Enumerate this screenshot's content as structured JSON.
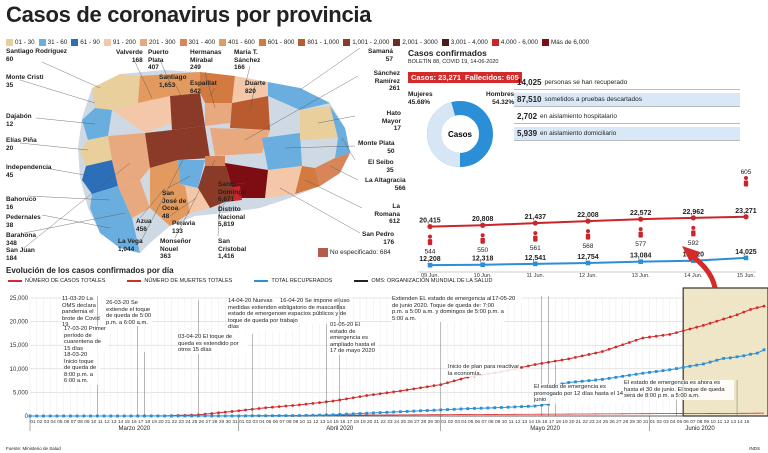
{
  "title": "Casos de coronavirus por provincia",
  "legend": [
    {
      "label": "01 - 30",
      "color": "#e8cf9c"
    },
    {
      "label": "31 - 60",
      "color": "#6aaee0"
    },
    {
      "label": "61 - 90",
      "color": "#2c6fb8"
    },
    {
      "label": "91 - 200",
      "color": "#f3c7a8"
    },
    {
      "label": "201 - 300",
      "color": "#e9a97f"
    },
    {
      "label": "301 - 400",
      "color": "#d88659"
    },
    {
      "label": "401 - 600",
      "color": "#e39a5f"
    },
    {
      "label": "601 - 800",
      "color": "#d27a40"
    },
    {
      "label": "801 - 1,000",
      "color": "#b95a2f"
    },
    {
      "label": "1,001 - 2,000",
      "color": "#8a3a27"
    },
    {
      "label": "2,001 - 3000",
      "color": "#6b2d22"
    },
    {
      "label": "3,001 - 4,000",
      "color": "#4d1b16"
    },
    {
      "label": "4,000 - 6,000",
      "color": "#c9252b"
    },
    {
      "label": "Más de 6,000",
      "color": "#7d0d12"
    }
  ],
  "provinces": [
    {
      "name": "Santiago Rodríguez",
      "value": "60"
    },
    {
      "name": "Monte Cristi",
      "value": "35"
    },
    {
      "name": "Dajabón",
      "value": "12"
    },
    {
      "name": "Elías Piña",
      "value": "20"
    },
    {
      "name": "Independencia",
      "value": "45"
    },
    {
      "name": "Bahoruco",
      "value": "16"
    },
    {
      "name": "Pedernales",
      "value": "38"
    },
    {
      "name": "Barahona",
      "value": "348"
    },
    {
      "name": "San Juan",
      "value": "184"
    },
    {
      "name": "Valverde",
      "value": "168"
    },
    {
      "name": "Puerto Plata",
      "value": "407"
    },
    {
      "name": "Santiago",
      "value": "1,653"
    },
    {
      "name": "Hermanas Mirabal",
      "value": "249"
    },
    {
      "name": "Espaillat",
      "value": "642"
    },
    {
      "name": "María T. Sánchez",
      "value": "166"
    },
    {
      "name": "Duarte",
      "value": "820"
    },
    {
      "name": "Samaná",
      "value": "57"
    },
    {
      "name": "Sánchez Ramírez",
      "value": "261"
    },
    {
      "name": "Hato Mayor",
      "value": "17"
    },
    {
      "name": "Monte Plata",
      "value": "50"
    },
    {
      "name": "El Seibo",
      "value": "35"
    },
    {
      "name": "La Altagracia",
      "value": "566"
    },
    {
      "name": "La Romana",
      "value": "612"
    },
    {
      "name": "San Pedro",
      "value": "176"
    },
    {
      "name": "Santo Domingo",
      "value": "6,671"
    },
    {
      "name": "Distrito Nacional",
      "value": "5,819"
    },
    {
      "name": "San Cristobal",
      "value": "1,416"
    },
    {
      "name": "Monseñor Nouel",
      "value": "363"
    },
    {
      "name": "La Vega",
      "value": "1,044"
    },
    {
      "name": "Azua",
      "value": "456"
    },
    {
      "name": "San José de Ocoa",
      "value": "48"
    },
    {
      "name": "Peravia",
      "value": "133"
    }
  ],
  "no_especificado": "No especificado: 684",
  "cases": {
    "header": "Casos confirmados",
    "boletin": "BOLETÍN 88, COVID 19, 14-06-2020",
    "casos_label": "Casos: 23,271",
    "fallecidos_label": "Fallecidos: 605",
    "mujeres_label": "Mujeres",
    "mujeres_pct": "45.68%",
    "hombres_label": "Hombres",
    "hombres_pct": "54.32%",
    "mujeres_value": 45.68,
    "donut_center": "Casos",
    "stats": [
      {
        "value": "14,025",
        "text": "personas se han recuperado"
      },
      {
        "value": "87,510",
        "text": "sometidos a pruebas descartados"
      },
      {
        "value": "2,702",
        "text": "en aislamiento hospitalario"
      },
      {
        "value": "5,939",
        "text": "en aislamiento domiciliario"
      }
    ],
    "mini": {
      "dates": [
        "09 Jun.",
        "10 Jun.",
        "11 Jun.",
        "12 Jun.",
        "13 Jun.",
        "14 Jun.",
        "15 Jun."
      ],
      "confirmed": [
        "20,415",
        "20,808",
        "21,437",
        "22,008",
        "22,572",
        "22,962",
        "23,271"
      ],
      "confirmed_values": [
        20415,
        20808,
        21437,
        22008,
        22572,
        22962,
        23271
      ],
      "deaths": [
        "544",
        "550",
        "561",
        "568",
        "577",
        "592",
        "605"
      ],
      "recovered": [
        "12,208",
        "12,318",
        "12,541",
        "12,754",
        "13,084",
        "13,320",
        "14,025"
      ],
      "recovered_values": [
        12208,
        12318,
        12541,
        12754,
        13084,
        13320,
        14025
      ]
    }
  },
  "evolution": {
    "title": "Evolución de los casos confirmados por día",
    "legend": [
      {
        "label": "NÚMERO DE CASOS TOTALES",
        "color": "#d32a2a"
      },
      {
        "label": "NÚMERO DE MUERTES TOTALES",
        "color": "#d32a2a"
      },
      {
        "label": "TOTAL RECUPERADOS",
        "color": "#2a8fd6"
      },
      {
        "label": "OMS: ORGANIZACIÓN MUNDIAL DE LA SALUD",
        "color": "#222"
      }
    ],
    "yticks": [
      "0",
      "5,000",
      "10,000",
      "15,000",
      "20,000",
      "25,000"
    ],
    "months": [
      "Marzo 2020",
      "Abril 2020",
      "Mayo 2020",
      "Junio 2020"
    ],
    "annotations": [
      "11-03-20 La OMS declara pandemia el brote de Covid 19",
      "17-03-20 Primer período de cuarentena de 15 días",
      "18-03-20 Inicio toque de queda de 8:00 p.m. a 6:00 a.m.",
      "26-03-20 Se extiende el toque de queda de 5:00 p.m. a 6:00 a.m.",
      "03-04-20 El toque de queda es extendido por otros 15 días",
      "14-04-20 Nuevas medidas extienden el estado de emergencia y toque de queda por 17 días",
      "16-04-20 Se impone el uso obligatorio de mascarillas en espacios públicos y de trabajo",
      "01-05-20 El estado de emergencia es ampliado hasta el 17 de mayo 2020",
      "Extienden EL estado de emergencia al 1ro. de junio 2020. Toque de queda de: 7:00 p.m. a 5:00 a.m. y domingos de 5:00 p.m. a 5:00 a.m.",
      "17-05-20",
      "Inicio de plan para reactivar la economía.",
      "El estado de emergencia es prorrogado por 12 días hasta el 14 de junio",
      "El estado de emergencia es ahora es hasta el 30 de junio. El toque de queda será de 8:00 p.m. a 5:00 a.m."
    ],
    "chart_data": {
      "type": "line",
      "x_start": "2020-03-01",
      "x_end": "2020-06-15",
      "ylim": [
        0,
        25000
      ],
      "series": [
        {
          "name": "NÚMERO DE CASOS TOTALES",
          "points": [
            [
              0,
              0
            ],
            [
              10,
              0
            ],
            [
              16,
              11
            ],
            [
              20,
              34
            ],
            [
              25,
              250
            ],
            [
              31,
              1109
            ],
            [
              35,
              1745
            ],
            [
              40,
              2349
            ],
            [
              45,
              3167
            ],
            [
              50,
              4335
            ],
            [
              55,
              5300
            ],
            [
              61,
              6652
            ],
            [
              65,
              8235
            ],
            [
              70,
              9376
            ],
            [
              75,
              10900
            ],
            [
              80,
              12110
            ],
            [
              85,
              13657
            ],
            [
              91,
              16531
            ],
            [
              95,
              17285
            ],
            [
              100,
              19195
            ],
            [
              105,
              21437
            ],
            [
              106,
              22008
            ],
            [
              107,
              22572
            ],
            [
              108,
              22962
            ],
            [
              109,
              23271
            ]
          ]
        },
        {
          "name": "NÚMERO DE MUERTES TOTALES",
          "points": [
            [
              0,
              0
            ],
            [
              31,
              51
            ],
            [
              61,
              282
            ],
            [
              91,
              485
            ],
            [
              106,
              568
            ],
            [
              109,
              605
            ]
          ]
        },
        {
          "name": "TOTAL RECUPERADOS",
          "points": [
            [
              0,
              0
            ],
            [
              25,
              3
            ],
            [
              31,
              15
            ],
            [
              40,
              100
            ],
            [
              45,
              253
            ],
            [
              50,
              586
            ],
            [
              55,
              909
            ],
            [
              61,
              1291
            ],
            [
              65,
              1554
            ],
            [
              70,
              1806
            ],
            [
              75,
              2107
            ],
            [
              77,
              2500
            ],
            [
              78,
              6500
            ],
            [
              80,
              7100
            ],
            [
              85,
              7760
            ],
            [
              91,
              9061
            ],
            [
              95,
              9800
            ],
            [
              100,
              11030
            ],
            [
              103,
              12208
            ],
            [
              104,
              12318
            ],
            [
              105,
              12541
            ],
            [
              106,
              12754
            ],
            [
              107,
              13084
            ],
            [
              108,
              13320
            ],
            [
              109,
              14025
            ]
          ]
        }
      ]
    }
  },
  "sources": {
    "left": "Fuente: Ministerio de Salud",
    "right": "INDS"
  }
}
